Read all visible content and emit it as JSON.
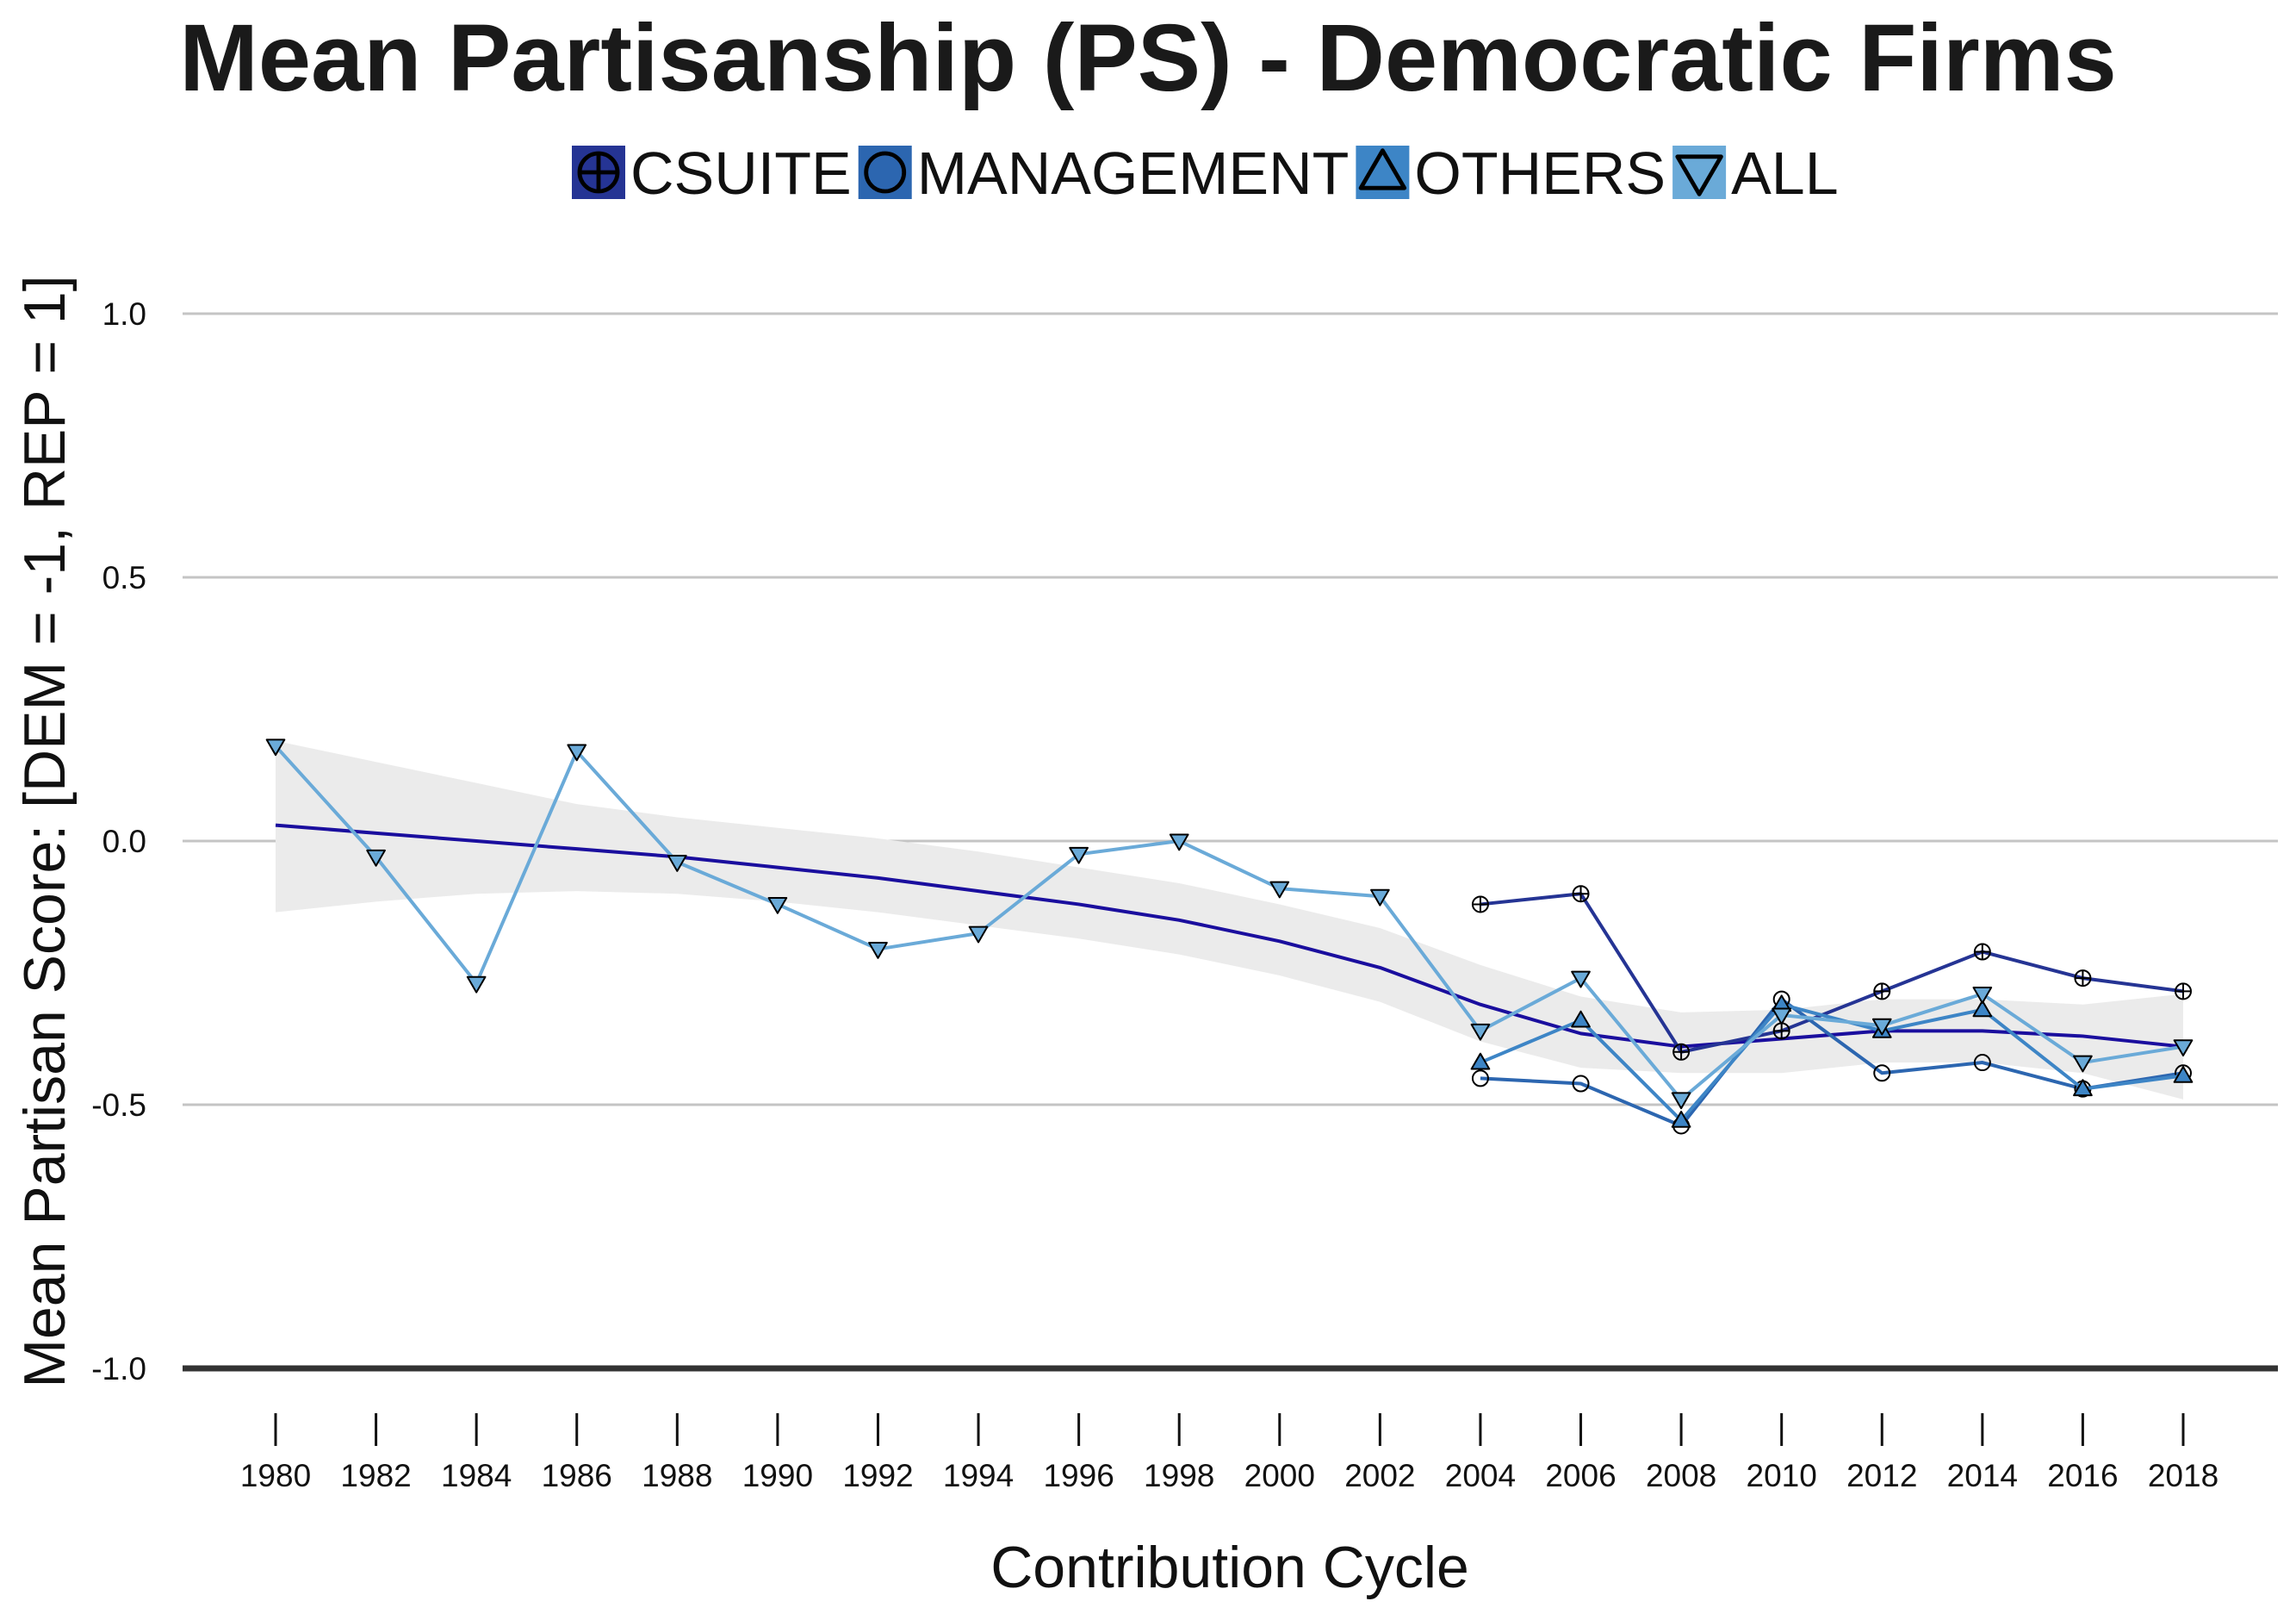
{
  "chart_data": {
    "type": "line",
    "title": "Mean Partisanship (PS) - Democratic Firms",
    "xlabel": "Contribution Cycle",
    "ylabel": "Mean Partisan Score: [DEM = -1, REP = 1]",
    "x": [
      1980,
      1982,
      1984,
      1986,
      1988,
      1990,
      1992,
      1994,
      1996,
      1998,
      2000,
      2002,
      2004,
      2006,
      2008,
      2010,
      2012,
      2014,
      2016,
      2018
    ],
    "x_tick_labels": [
      "1980",
      "1982",
      "1984",
      "1986",
      "1988",
      "1990",
      "1992",
      "1994",
      "1996",
      "1998",
      "2000",
      "2002",
      "2004",
      "2006",
      "2008",
      "2010",
      "2012",
      "2014",
      "2016",
      "2018"
    ],
    "y_ticks": [
      1.0,
      0.5,
      0.0,
      -0.5,
      -1.0
    ],
    "y_tick_labels": [
      "1.0",
      "0.5",
      "0.0",
      "-0.5",
      "-1.0"
    ],
    "xlim": [
      1980,
      2018
    ],
    "ylim": [
      -1.0,
      1.0
    ],
    "grid": "horizontal",
    "legend_position": "top",
    "series": [
      {
        "name": "CSUITE",
        "marker": "circle-plus",
        "color": "#253494",
        "x": [
          2004,
          2006,
          2008,
          2010,
          2012,
          2014,
          2016,
          2018
        ],
        "values": [
          -0.12,
          -0.1,
          -0.4,
          -0.36,
          -0.285,
          -0.21,
          -0.26,
          -0.285
        ]
      },
      {
        "name": "MANAGEMENT",
        "marker": "circle",
        "color": "#2c66b0",
        "x": [
          2004,
          2006,
          2008,
          2010,
          2012,
          2014,
          2016,
          2018
        ],
        "values": [
          -0.45,
          -0.46,
          -0.54,
          -0.3,
          -0.44,
          -0.42,
          -0.47,
          -0.44
        ]
      },
      {
        "name": "OTHERS",
        "marker": "triangle-up",
        "color": "#3d85c6",
        "x": [
          2004,
          2006,
          2008,
          2010,
          2012,
          2014,
          2016,
          2018
        ],
        "values": [
          -0.42,
          -0.34,
          -0.53,
          -0.31,
          -0.36,
          -0.32,
          -0.47,
          -0.445
        ]
      },
      {
        "name": "ALL",
        "marker": "triangle-down",
        "color": "#6aaad8",
        "x": [
          1980,
          1982,
          1984,
          1986,
          1988,
          1990,
          1992,
          1994,
          1996,
          1998,
          2000,
          2002,
          2004,
          2006,
          2008,
          2010,
          2012,
          2014,
          2016,
          2018
        ],
        "values": [
          0.18,
          -0.03,
          -0.27,
          0.17,
          -0.04,
          -0.12,
          -0.205,
          -0.175,
          -0.025,
          0.0,
          -0.09,
          -0.105,
          -0.36,
          -0.26,
          -0.49,
          -0.33,
          -0.35,
          -0.29,
          -0.42,
          -0.39
        ]
      }
    ],
    "trend": {
      "x": [
        1980,
        1982,
        1984,
        1986,
        1988,
        1990,
        1992,
        1994,
        1996,
        1998,
        2000,
        2002,
        2004,
        2006,
        2008,
        2010,
        2012,
        2014,
        2016,
        2018
      ],
      "values": [
        0.03,
        0.015,
        0.0,
        -0.015,
        -0.03,
        -0.05,
        -0.07,
        -0.095,
        -0.12,
        -0.15,
        -0.19,
        -0.24,
        -0.31,
        -0.365,
        -0.39,
        -0.375,
        -0.36,
        -0.36,
        -0.37,
        -0.39
      ],
      "lower": [
        -0.135,
        -0.115,
        -0.1,
        -0.095,
        -0.1,
        -0.115,
        -0.135,
        -0.16,
        -0.185,
        -0.215,
        -0.255,
        -0.305,
        -0.38,
        -0.43,
        -0.44,
        -0.44,
        -0.42,
        -0.42,
        -0.44,
        -0.49
      ],
      "upper": [
        0.19,
        0.15,
        0.11,
        0.07,
        0.045,
        0.025,
        0.005,
        -0.02,
        -0.05,
        -0.08,
        -0.12,
        -0.165,
        -0.235,
        -0.295,
        -0.325,
        -0.32,
        -0.3,
        -0.3,
        -0.31,
        -0.29
      ],
      "line_color": "#1a0e9e",
      "band_color": "#ebebeb"
    },
    "colors": {
      "text": "#111111",
      "gridline": "#c4c4c4",
      "baseline": "#333333"
    }
  }
}
